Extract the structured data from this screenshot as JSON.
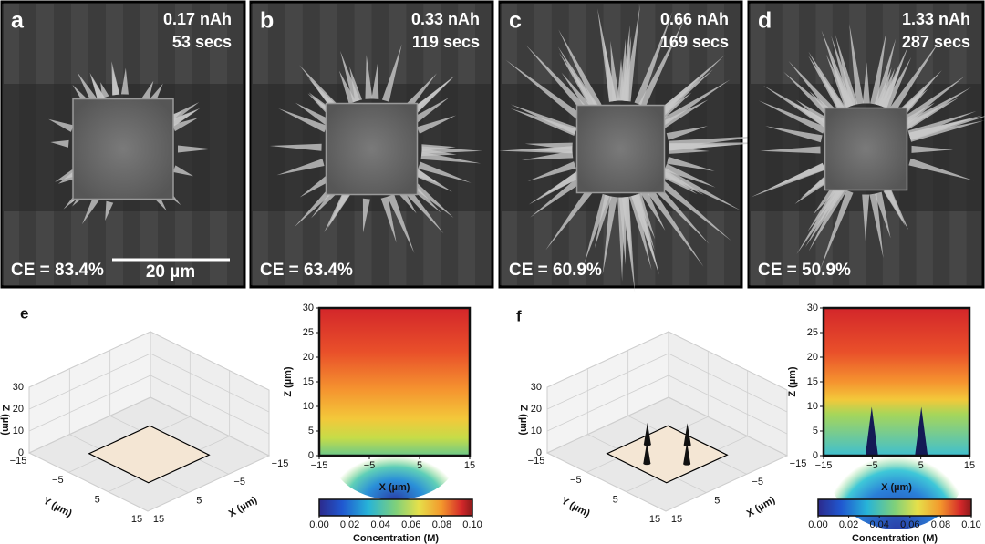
{
  "panels": [
    {
      "label": "a",
      "charge": "0.17 nAh",
      "time": "53 secs",
      "efficiency": "CE = 83.4%",
      "scale_bar": "20 µm"
    },
    {
      "label": "b",
      "charge": "0.33 nAh",
      "time": "119 secs",
      "efficiency": "CE = 63.4%"
    },
    {
      "label": "c",
      "charge": "0.66 nAh",
      "time": "169 secs",
      "efficiency": "CE = 60.9%"
    },
    {
      "label": "d",
      "charge": "1.33 nAh",
      "time": "287 secs",
      "efficiency": "CE = 50.9%"
    }
  ],
  "simulations": [
    {
      "label": "e",
      "surface_plot": {
        "xlabel": "X (µm)",
        "ylabel": "Y (µm)",
        "zlabel": "Z (µm)",
        "xlim": [
          -15,
          15
        ],
        "ylim": [
          -15,
          15
        ],
        "zlim": [
          0,
          30
        ],
        "xticks": [
          {
            "value": -15,
            "label": "−15"
          },
          {
            "value": -5,
            "label": "−5"
          },
          5,
          15
        ],
        "yticks": [
          {
            "value": -15,
            "label": "−15"
          },
          {
            "value": -5,
            "label": "−5"
          },
          5,
          15
        ],
        "zticks": [
          0,
          10,
          20,
          30
        ]
      },
      "heatmap": {
        "xlabel": "X (µm)",
        "ylabel": "Z (µm)",
        "xlim": [
          -15,
          15
        ],
        "ylim": [
          0,
          30
        ],
        "xticks": [
          {
            "value": -15,
            "label": "−15"
          },
          {
            "value": -5,
            "label": "−5"
          },
          5,
          15
        ],
        "yticks": [
          0,
          5,
          10,
          15,
          20,
          25,
          30
        ]
      },
      "colorbar": {
        "label": "Concentration (M)",
        "lim": [
          0,
          0.1
        ],
        "ticks": [
          {
            "value": 0,
            "label": "0.00"
          },
          {
            "value": 0.02,
            "label": "0.02"
          },
          {
            "value": 0.04,
            "label": "0.04"
          },
          {
            "value": 0.06,
            "label": "0.06"
          },
          {
            "value": 0.08,
            "label": "0.08"
          },
          {
            "value": 0.1,
            "label": "0.10"
          }
        ]
      }
    },
    {
      "label": "f",
      "surface_plot": {
        "xlabel": "X (µm)",
        "ylabel": "Y (µm)",
        "zlabel": "Z (µm)",
        "xlim": [
          -15,
          15
        ],
        "ylim": [
          -15,
          15
        ],
        "zlim": [
          0,
          30
        ],
        "xticks": [
          {
            "value": -15,
            "label": "−15"
          },
          {
            "value": -5,
            "label": "−5"
          },
          5,
          15
        ],
        "yticks": [
          {
            "value": -15,
            "label": "−15"
          },
          {
            "value": -5,
            "label": "−5"
          },
          5,
          15
        ],
        "zticks": [
          0,
          10,
          20,
          30
        ]
      },
      "heatmap": {
        "xlabel": "X (µm)",
        "ylabel": "Z (µm)",
        "xlim": [
          -15,
          15
        ],
        "ylim": [
          0,
          30
        ],
        "xticks": [
          {
            "value": -15,
            "label": "−15"
          },
          {
            "value": -5,
            "label": "−5"
          },
          5,
          15
        ],
        "yticks": [
          0,
          5,
          10,
          15,
          20,
          25,
          30
        ]
      },
      "colorbar": {
        "label": "Concentration (M)",
        "lim": [
          0,
          0.1
        ],
        "ticks": [
          {
            "value": 0,
            "label": "0.00"
          },
          {
            "value": 0.02,
            "label": "0.02"
          },
          {
            "value": 0.04,
            "label": "0.04"
          },
          {
            "value": 0.06,
            "label": "0.06"
          },
          {
            "value": 0.08,
            "label": "0.08"
          },
          {
            "value": 0.1,
            "label": "0.10"
          }
        ]
      }
    }
  ]
}
